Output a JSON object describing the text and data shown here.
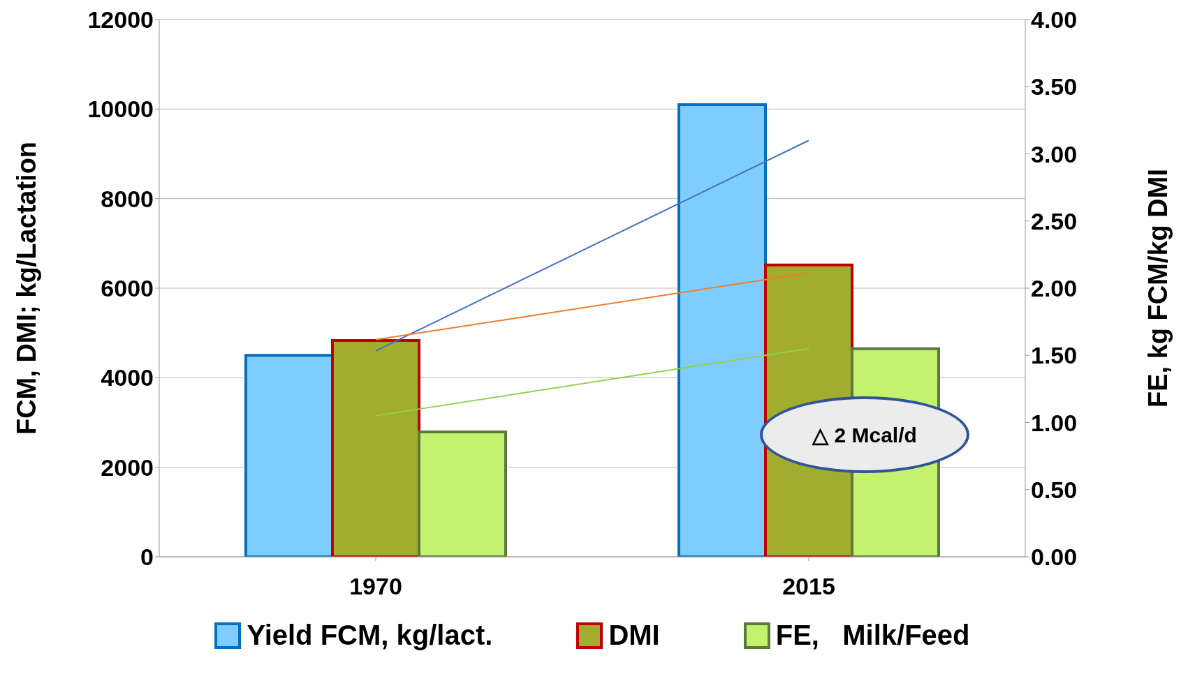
{
  "chart_data": {
    "type": "bar",
    "categories": [
      "1970",
      "2015"
    ],
    "ylabel": "FCM, DMI; kg/Lactation",
    "y2label": "FE, kg FCM/kg DMI",
    "ylim": [
      0,
      12000
    ],
    "yticks": [
      0,
      2000,
      4000,
      6000,
      8000,
      10000,
      12000
    ],
    "y2lim": [
      0,
      4
    ],
    "y2ticks": [
      {
        "value": 0,
        "label": "0.00"
      },
      {
        "value": 0.5,
        "label": "0.50"
      },
      {
        "value": 1,
        "label": "1.00"
      },
      {
        "value": 1.5,
        "label": "1.50"
      },
      {
        "value": 2,
        "label": "2.00"
      },
      {
        "value": 2.5,
        "label": "2.50"
      },
      {
        "value": 3,
        "label": "3.00"
      },
      {
        "value": 3.5,
        "label": "3.50"
      },
      {
        "value": 4,
        "label": "4.00"
      }
    ],
    "series": [
      {
        "name": "Yield FCM, kg/lact.",
        "color": "#7fcdff",
        "values": [
          4500,
          10100
        ]
      },
      {
        "name": "DMI",
        "color": "#a2ad2d",
        "values": [
          4830,
          6520
        ]
      },
      {
        "name": "FE,   Milk/Feed",
        "color": "#c4f26e",
        "values": [
          0.93,
          1.55
        ],
        "axis": "y2"
      },
      {
        "type": "line",
        "color": "#4472c4",
        "values": [
          4600,
          9300
        ]
      },
      {
        "type": "line",
        "color": "#ed7d31",
        "values": [
          4850,
          6340
        ]
      },
      {
        "type": "line",
        "color": "#92d050",
        "values": [
          1.05,
          1.55
        ],
        "axis": "y2"
      }
    ],
    "annotations": [
      "△ 2 Mcal/d"
    ],
    "grid": "y",
    "legend": "bottom"
  }
}
